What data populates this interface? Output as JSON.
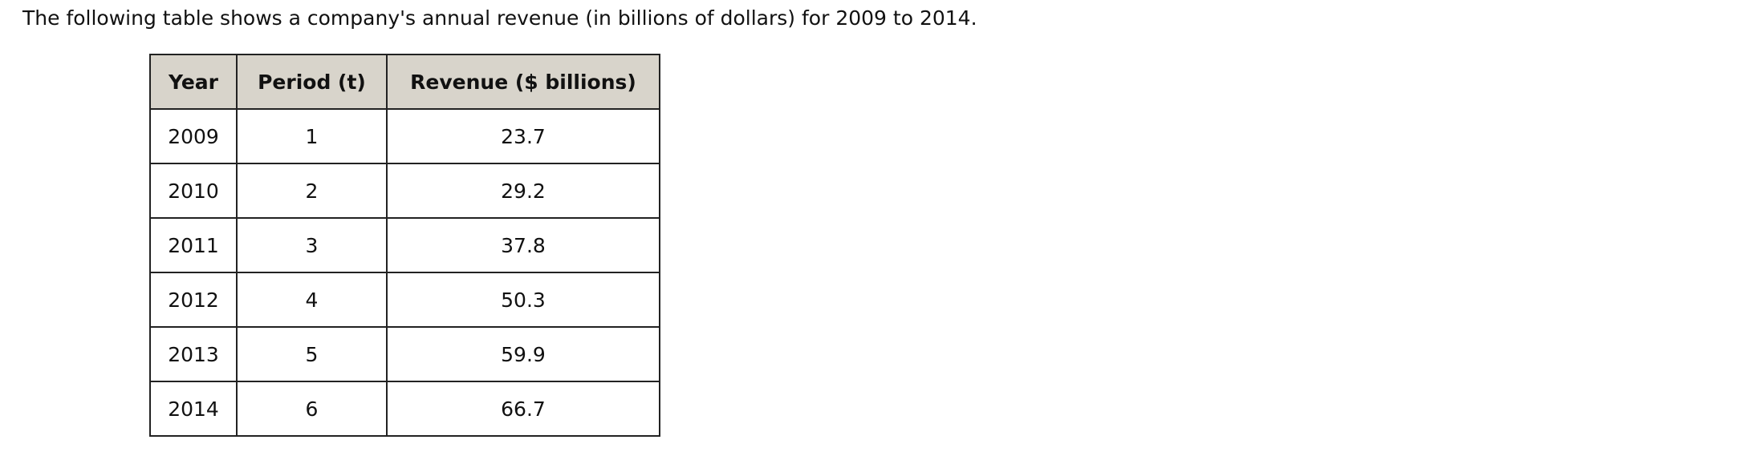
{
  "caption": "The following table shows a company's annual revenue (in billions of dollars) for 2009 to 2014.",
  "table": {
    "header": [
      "Year",
      "Period (t)",
      "Revenue ($ billions)"
    ],
    "rows": [
      [
        2009,
        1,
        23.7
      ],
      [
        2010,
        2,
        29.2
      ],
      [
        2011,
        3,
        37.8
      ],
      [
        2012,
        4,
        50.3
      ],
      [
        2013,
        5,
        59.9
      ],
      [
        2014,
        6,
        66.7
      ]
    ]
  }
}
